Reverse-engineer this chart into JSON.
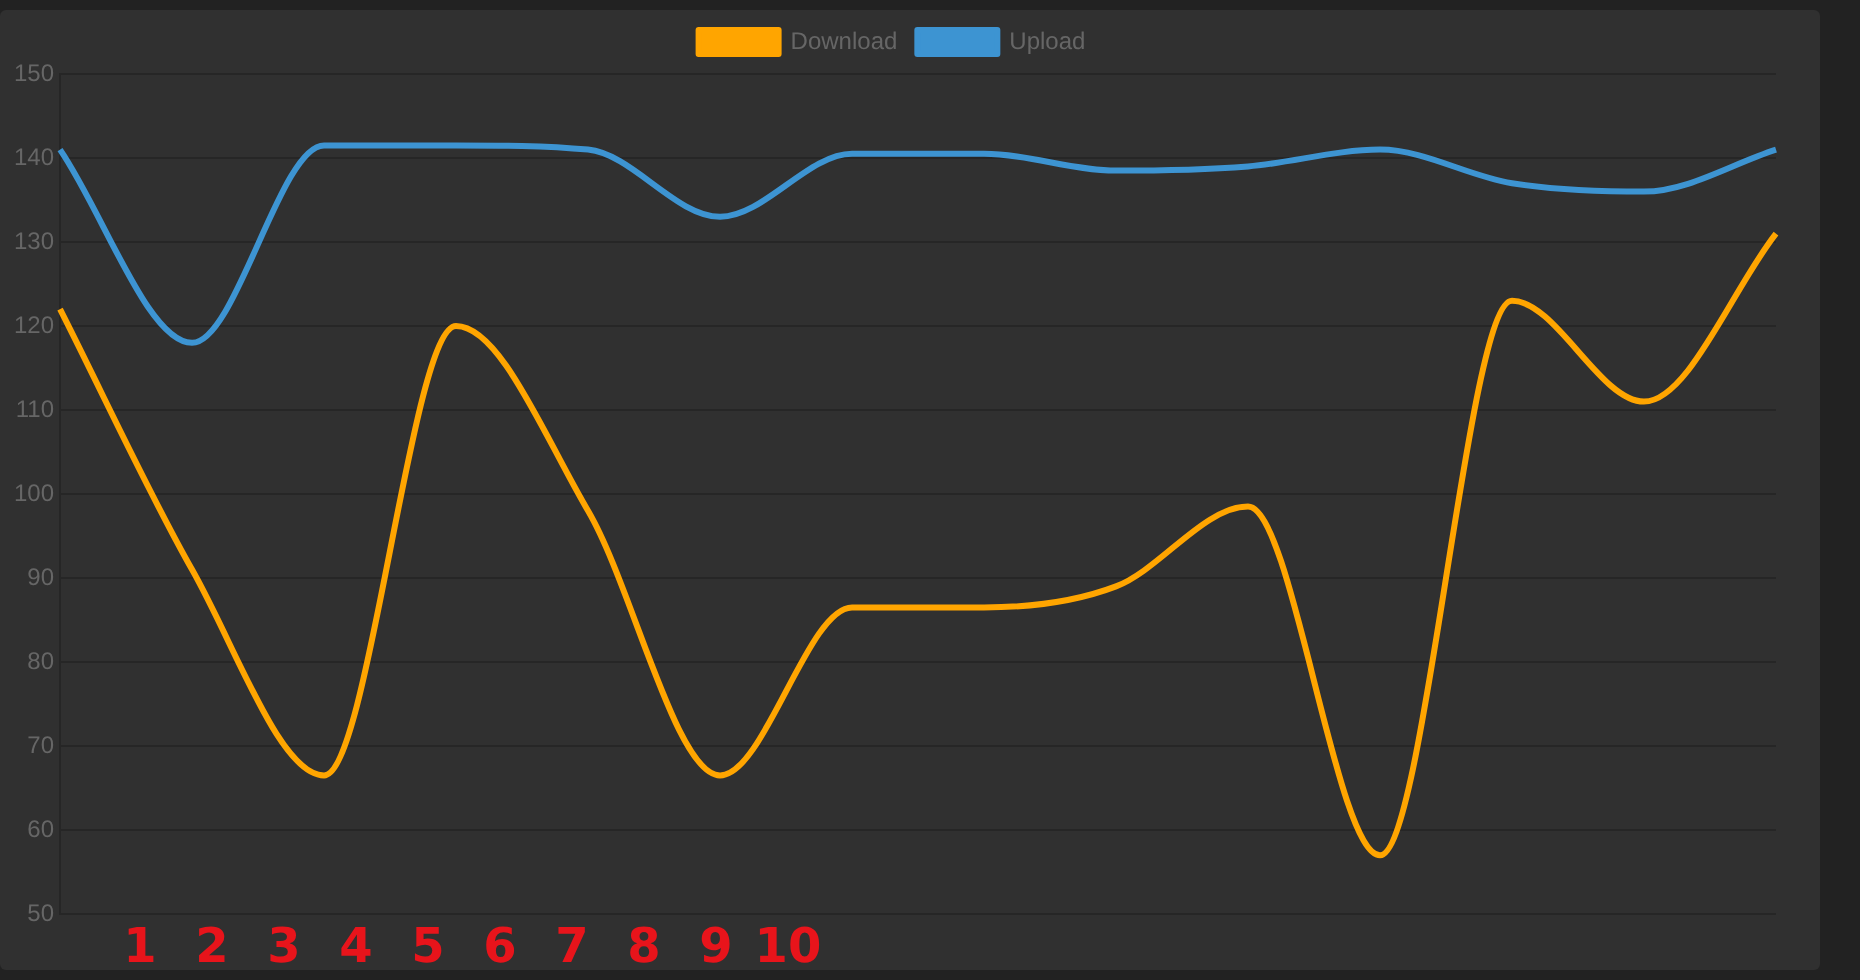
{
  "chart_data": {
    "type": "line",
    "categories": [
      null,
      null,
      null,
      null,
      null,
      null,
      null,
      null,
      null,
      null,
      null,
      null,
      null,
      null
    ],
    "series": [
      {
        "name": "Download",
        "color": "#ffa500",
        "values": [
          122,
          91,
          66.5,
          120,
          98,
          66.5,
          86.5,
          86.5,
          89,
          98.5,
          57,
          123,
          111,
          131
        ]
      },
      {
        "name": "Upload",
        "color": "#3d94d2",
        "values": [
          141,
          118,
          141.5,
          141.5,
          141,
          133,
          140.5,
          140.5,
          138.5,
          139,
          141,
          137,
          136,
          141
        ]
      }
    ],
    "ylim": [
      50,
      150
    ],
    "yticks": [
      50,
      60,
      70,
      80,
      90,
      100,
      110,
      120,
      130,
      140,
      150
    ],
    "grid": "y",
    "legend": "top",
    "marker": "none",
    "line_style": "solid",
    "annotations": [
      "1",
      "2",
      "3",
      "4",
      "5",
      "6",
      "7",
      "8",
      "9",
      "10"
    ]
  }
}
